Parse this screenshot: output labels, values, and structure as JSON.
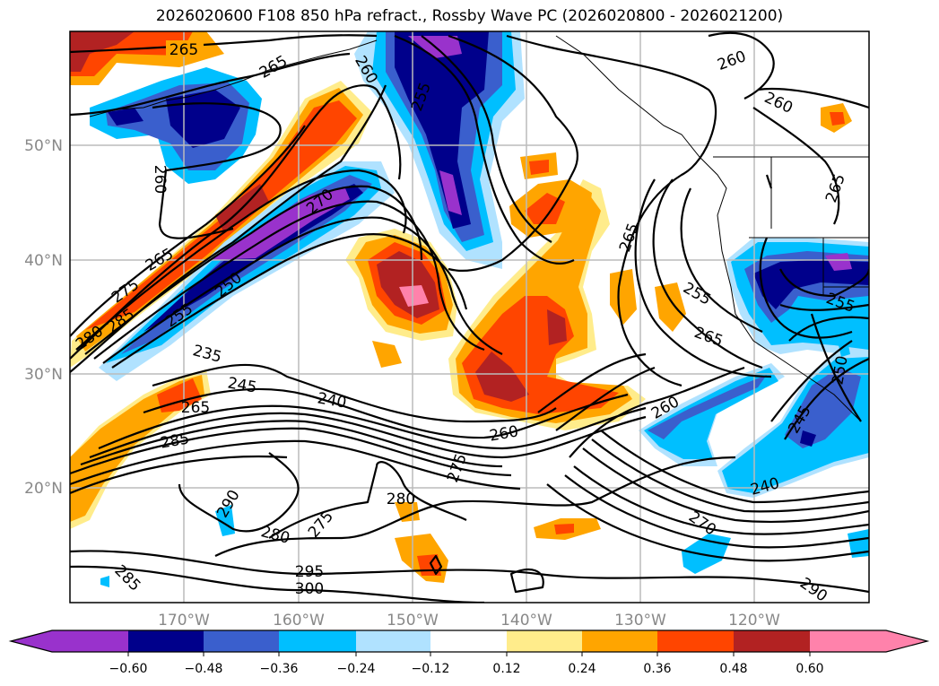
{
  "title": "2026020600 F108 850 hPa refract., Rossby Wave PC (2026020800 - 2026021200)",
  "map": {
    "lat_labels": [
      "50°N",
      "40°N",
      "30°N",
      "20°N"
    ],
    "lon_labels": [
      "170°W",
      "160°W",
      "150°W",
      "140°W",
      "130°W",
      "120°W"
    ],
    "contour_labels": [
      "265",
      "265",
      "260",
      "255",
      "260",
      "260",
      "260",
      "270",
      "265",
      "275",
      "280",
      "285",
      "250",
      "255",
      "265",
      "255",
      "265",
      "265",
      "255",
      "235",
      "245",
      "240",
      "265",
      "285",
      "260",
      "275",
      "260",
      "245",
      "250",
      "240",
      "290",
      "280",
      "280",
      "275",
      "270",
      "285",
      "295",
      "300",
      "290"
    ]
  },
  "colorbar": {
    "colors": [
      "#9932CC",
      "#00008B",
      "#3A5FCD",
      "#00BFFF",
      "#B0E2FF",
      "#FFFFFF",
      "#FFEC8B",
      "#FFA500",
      "#FF4500",
      "#B22222",
      "#FF82AB"
    ],
    "ticks": [
      "−0.60",
      "−0.48",
      "−0.36",
      "−0.24",
      "−0.12",
      "0.12",
      "0.24",
      "0.36",
      "0.48",
      "0.60"
    ]
  }
}
